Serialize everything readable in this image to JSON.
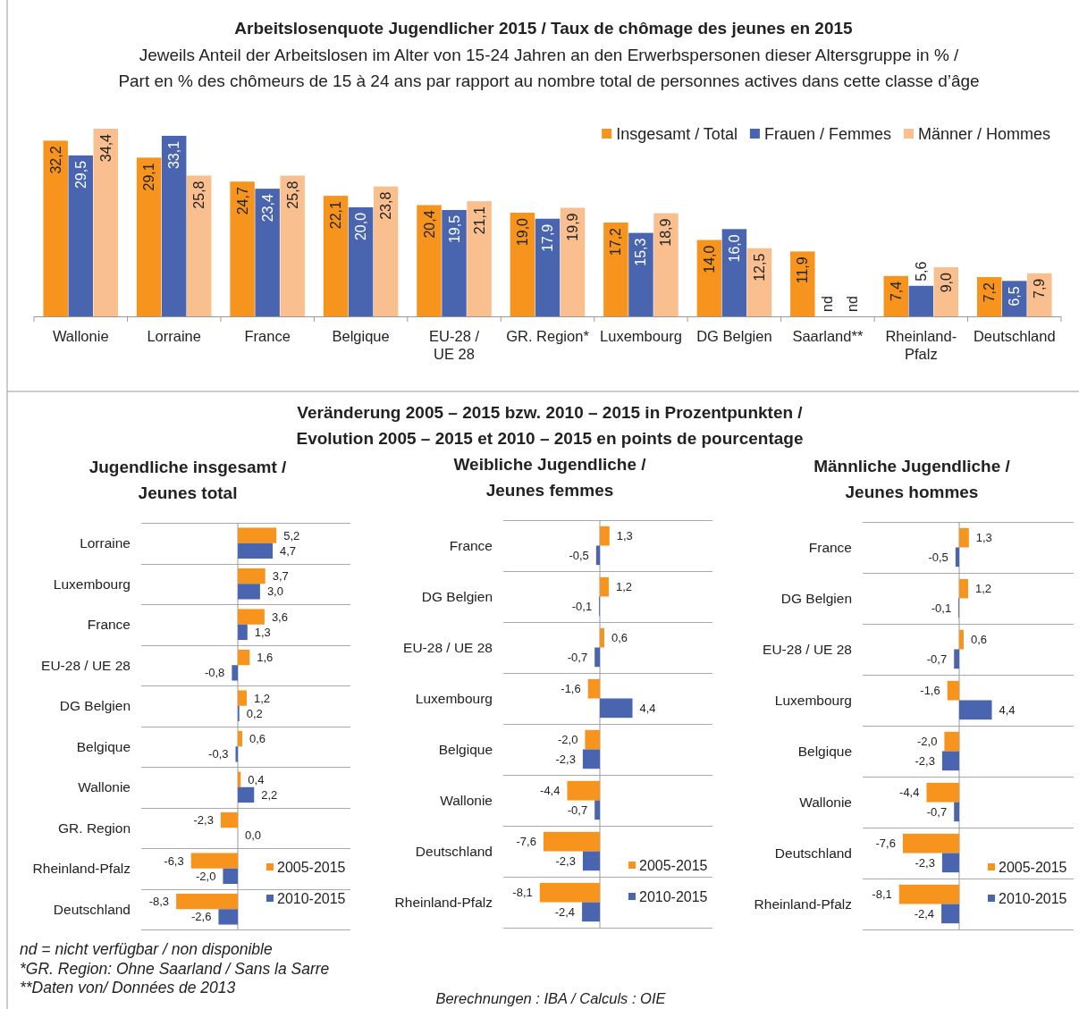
{
  "chart_data": [
    {
      "type": "bar",
      "title": "Arbeitslosenquote Jugendlicher 2015 / Taux de chômage des jeunes en 2015",
      "subtitle": "Jeweils Anteil der Arbeitslosen im Alter von 15-24 Jahren an den Erwerbspersonen dieser Altersgruppe in % / Part en % des chômeurs de 15 à 24 ans par rapport au nombre total de personnes actives dans cette classe d’âge",
      "categories": [
        "Wallonie",
        "Lorraine",
        "France",
        "Belgique",
        "EU-28 / UE 28",
        "GR. Region*",
        "Luxembourg",
        "DG Belgien",
        "Saarland**",
        "Rheinland-Pfalz",
        "Deutschland"
      ],
      "series": [
        {
          "name": "Insgesamt / Total",
          "color": "#f7941d",
          "values": [
            32.2,
            29.1,
            24.7,
            22.1,
            20.4,
            19.0,
            17.2,
            14.0,
            11.9,
            7.4,
            7.2
          ],
          "value_labels": [
            "32,2",
            "29,1",
            "24,7",
            "22,1",
            "20,4",
            "19,0",
            "17,2",
            "14,0",
            "11,9",
            "7,4",
            "7,2"
          ]
        },
        {
          "name": "Frauen / Femmes",
          "color": "#4a65b0",
          "values": [
            29.5,
            33.1,
            23.4,
            20.0,
            19.5,
            17.9,
            15.3,
            16.0,
            null,
            5.6,
            6.5
          ],
          "value_labels": [
            "29,5",
            "33,1",
            "23,4",
            "20,0",
            "19,5",
            "17,9",
            "15,3",
            "16,0",
            "nd",
            "5,6",
            "6,5"
          ]
        },
        {
          "name": "Männer / Hommes",
          "color": "#f9bf8f",
          "values": [
            34.4,
            25.8,
            25.8,
            23.8,
            21.1,
            19.9,
            18.9,
            12.5,
            null,
            9.0,
            7.9
          ],
          "value_labels": [
            "34,4",
            "25,8",
            "25,8",
            "23,8",
            "21,1",
            "19,9",
            "18,9",
            "12,5",
            "nd",
            "9,0",
            "7,9"
          ]
        }
      ],
      "legend": "top right",
      "annotations": [
        "nd = nicht verfügbar / non disponible",
        "*GR. Region: Ohne Saarland / Sans la Sarre",
        "**Daten von/ Données de 2013",
        "Berechnungen : IBA / Calculs : OIE"
      ]
    },
    {
      "type": "bar",
      "orientation": "horizontal",
      "title": "Jugendliche insgesamt / Jeunes total",
      "annotations": [
        "Veränderung 2005 – 2015 bzw. 2010 – 2015 in Prozentpunkten / Evolution 2005 – 2015 et 2010 – 2015 en points de pourcentage"
      ],
      "categories": [
        "Lorraine",
        "Luxembourg",
        "France",
        "EU-28 / UE 28",
        "DG Belgien",
        "Belgique",
        "Wallonie",
        "GR. Region",
        "Rheinland-Pfalz",
        "Deutschland"
      ],
      "series": [
        {
          "name": "2005-2015",
          "color": "#f7941d",
          "values": [
            5.2,
            3.7,
            3.6,
            1.6,
            1.2,
            0.6,
            0.4,
            -2.3,
            -6.3,
            -8.3
          ],
          "value_labels": [
            "5,2",
            "3,7",
            "3,6",
            "1,6",
            "1,2",
            "0,6",
            "0,4",
            "-2,3",
            "-6,3",
            "-8,3"
          ]
        },
        {
          "name": "2010-2015",
          "color": "#4a65b0",
          "values": [
            4.7,
            3.0,
            1.3,
            -0.8,
            0.2,
            -0.3,
            2.2,
            0.0,
            -2.0,
            -2.6
          ],
          "value_labels": [
            "4,7",
            "3,0",
            "1,3",
            "-0,8",
            "0,2",
            "-0,3",
            "2,2",
            "0,0",
            "-2,0",
            "-2,6"
          ]
        }
      ],
      "grid": "y",
      "legend": "bottom right"
    },
    {
      "type": "bar",
      "orientation": "horizontal",
      "title": "Weibliche Jugendliche / Jeunes femmes",
      "categories": [
        "France",
        "DG Belgien",
        "EU-28 / UE 28",
        "Luxembourg",
        "Belgique",
        "Wallonie",
        "Deutschland",
        "Rheinland-Pfalz"
      ],
      "series": [
        {
          "name": "2005-2015",
          "color": "#f7941d",
          "values": [
            1.3,
            1.2,
            0.6,
            -1.6,
            -2.0,
            -4.4,
            -7.6,
            -8.1
          ],
          "value_labels": [
            "1,3",
            "1,2",
            "0,6",
            "-1,6",
            "-2,0",
            "-4,4",
            "-7,6",
            "-8,1"
          ]
        },
        {
          "name": "2010-2015",
          "color": "#4a65b0",
          "values": [
            -0.5,
            -0.1,
            -0.7,
            4.4,
            -2.3,
            -0.7,
            -2.3,
            -2.4
          ],
          "value_labels": [
            "-0,5",
            "-0,1",
            "-0,7",
            "4,4",
            "-2,3",
            "-0,7",
            "-2,3",
            "-2,4"
          ]
        }
      ],
      "grid": "y",
      "legend": "bottom right"
    },
    {
      "type": "bar",
      "orientation": "horizontal",
      "title": "Männliche Jugendliche / Jeunes hommes",
      "categories": [
        "France",
        "DG Belgien",
        "EU-28 / UE 28",
        "Luxembourg",
        "Belgique",
        "Wallonie",
        "Deutschland",
        "Rheinland-Pfalz"
      ],
      "series": [
        {
          "name": "2005-2015",
          "color": "#f7941d",
          "values": [
            1.3,
            1.2,
            0.6,
            -1.6,
            -2.0,
            -4.4,
            -7.6,
            -8.1
          ],
          "value_labels": [
            "1,3",
            "1,2",
            "0,6",
            "-1,6",
            "-2,0",
            "-4,4",
            "-7,6",
            "-8,1"
          ]
        },
        {
          "name": "2010-2015",
          "color": "#4a65b0",
          "values": [
            -0.5,
            -0.1,
            -0.7,
            4.4,
            -2.3,
            -0.7,
            -2.3,
            -2.4
          ],
          "value_labels": [
            "-0,5",
            "-0,1",
            "-0,7",
            "4,4",
            "-2,3",
            "-0,7",
            "-2,3",
            "-2,4"
          ]
        }
      ],
      "grid": "y",
      "legend": "bottom right"
    }
  ]
}
